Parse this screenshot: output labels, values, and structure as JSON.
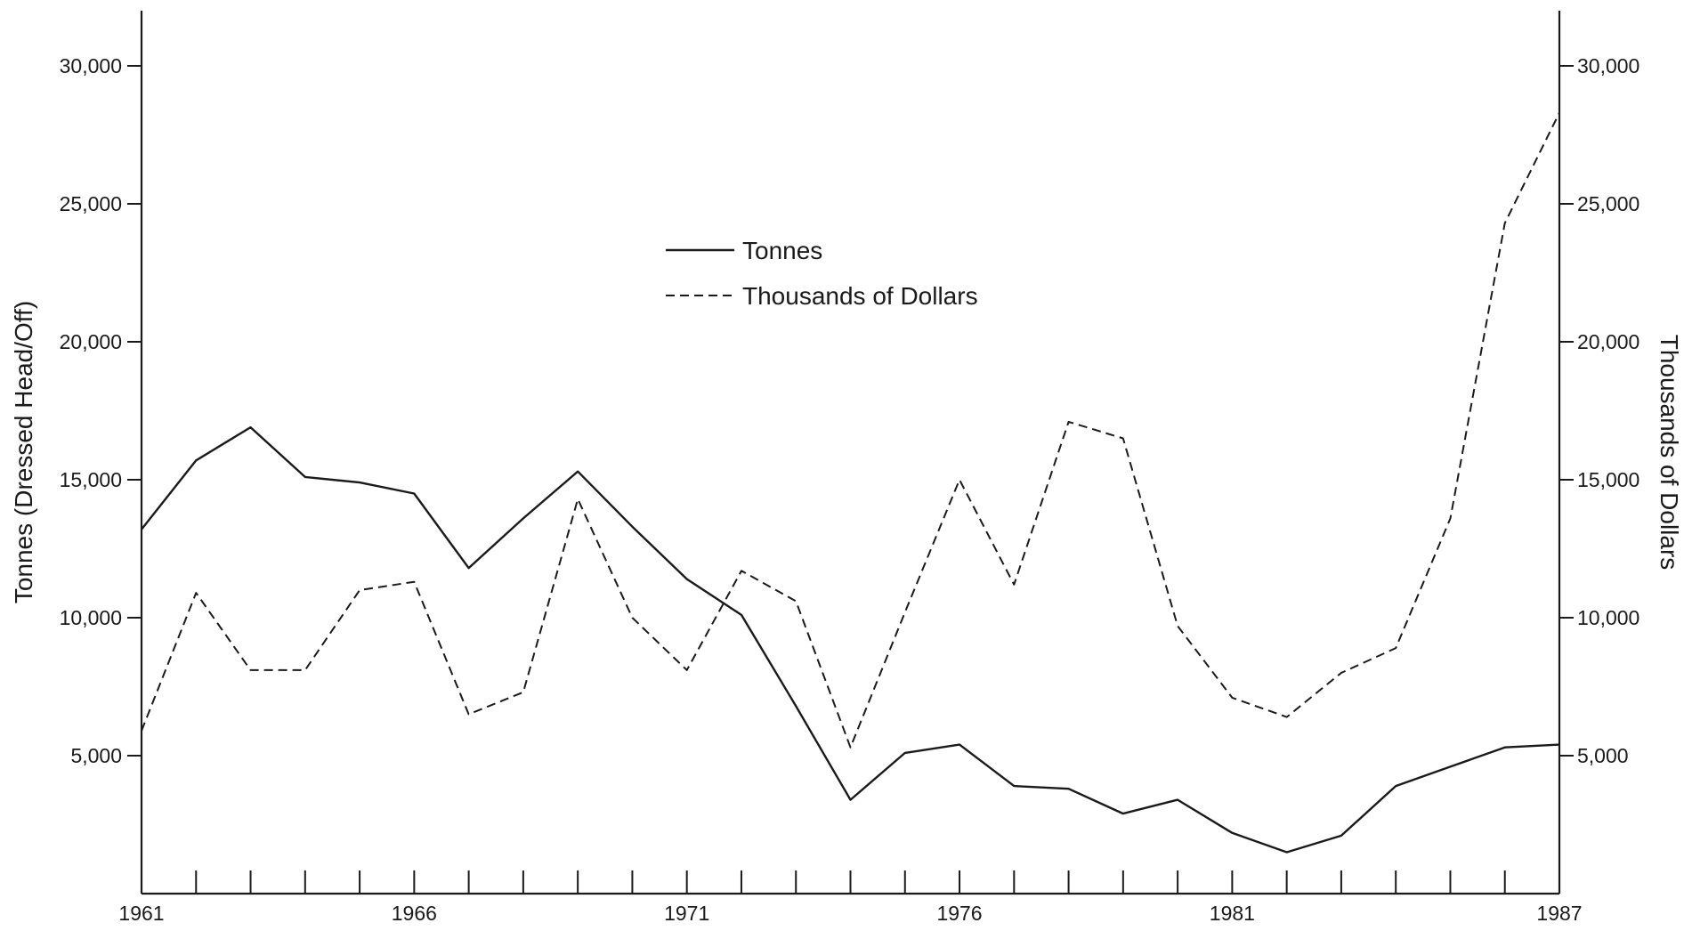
{
  "colors": {
    "background": "#ffffff",
    "ink": "#1a1a1a"
  },
  "chart_data": {
    "type": "line",
    "title": "",
    "xlabel": "",
    "ylabel": "Tonnes (Dressed Head/Off)",
    "ylabel_right": "Thousands of Dollars",
    "x": [
      1961,
      1962,
      1963,
      1964,
      1965,
      1966,
      1967,
      1968,
      1969,
      1970,
      1971,
      1972,
      1973,
      1974,
      1975,
      1976,
      1977,
      1978,
      1979,
      1980,
      1981,
      1982,
      1983,
      1984,
      1985,
      1986,
      1987
    ],
    "xlim": [
      1961,
      1987
    ],
    "ylim": [
      0,
      32000
    ],
    "ylim_right": [
      0,
      32000
    ],
    "x_tick_labels": [
      "1961",
      "1966",
      "1971",
      "1976",
      "1981",
      "1987"
    ],
    "y_tick_labels": [
      "5,000",
      "10,000",
      "15,000",
      "20,000",
      "25,000",
      "30,000"
    ],
    "y_tick_labels_right": [
      "5,000",
      "10,000",
      "15,000",
      "20,000",
      "25,000",
      "30,000"
    ],
    "legend_position": "upper-center",
    "grid": false,
    "series": [
      {
        "name": "Tonnes",
        "axis": "left",
        "style": "solid",
        "values": [
          13200,
          15700,
          16900,
          15100,
          14900,
          14500,
          11800,
          13600,
          15300,
          13300,
          11400,
          10100,
          6800,
          3400,
          5100,
          5400,
          3900,
          3800,
          2900,
          3400,
          2200,
          1500,
          2100,
          3900,
          4600,
          5300,
          5400
        ]
      },
      {
        "name": "Thousands of Dollars",
        "axis": "right",
        "style": "dashed",
        "values": [
          5900,
          10900,
          8100,
          8100,
          11000,
          11300,
          6500,
          7300,
          14300,
          10000,
          8100,
          11700,
          10600,
          5300,
          10200,
          15000,
          11200,
          17100,
          16500,
          9700,
          7100,
          6400,
          8000,
          8900,
          13600,
          24300,
          28300
        ]
      }
    ]
  }
}
